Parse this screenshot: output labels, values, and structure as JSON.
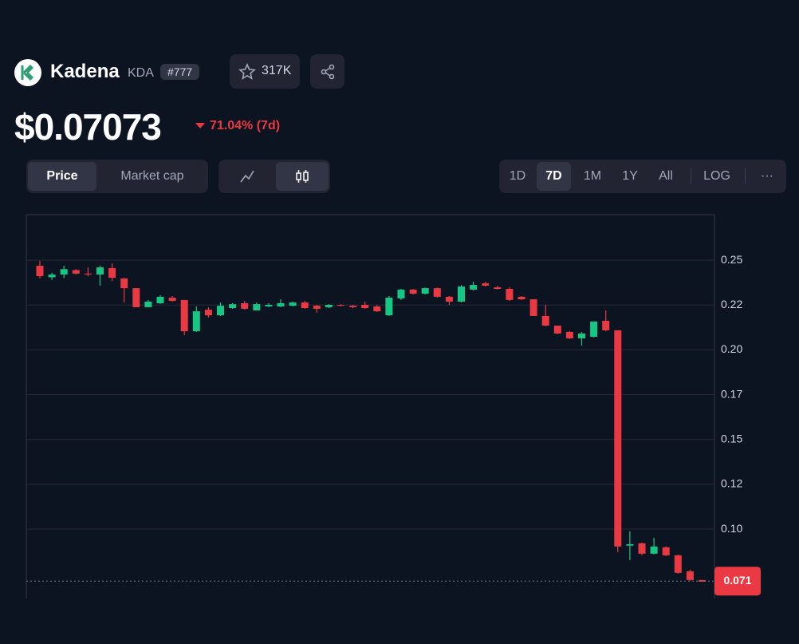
{
  "header": {
    "name": "Kadena",
    "symbol": "KDA",
    "rank": "#777",
    "watchlist": "317K"
  },
  "price": {
    "value": "$0.07073",
    "change": "71.04% (7d)"
  },
  "tabs": {
    "metric": [
      "Price",
      "Market cap"
    ],
    "range": [
      "1D",
      "7D",
      "1M",
      "1Y",
      "All",
      "LOG",
      "···"
    ]
  },
  "chart_data": {
    "type": "candlestick",
    "up_color": "#16c784",
    "down_color": "#ea3943",
    "ylim": [
      0.0613,
      0.2754
    ],
    "yticks": [
      0.25,
      {
        "value": 0.225,
        "label": "0.22"
      },
      {
        "value": 0.2,
        "label": "0.20"
      },
      {
        "value": 0.175,
        "label": "0.17"
      },
      0.15,
      {
        "value": 0.125,
        "label": "0.12"
      },
      {
        "value": 0.1,
        "label": "0.10"
      }
    ],
    "grid": true,
    "last_price": 0.071,
    "open": [
      0.2469,
      0.2405,
      0.242,
      0.2445,
      0.2425,
      0.242,
      0.2456,
      0.2398,
      0.2344,
      0.2238,
      0.226,
      0.2291,
      0.2278,
      0.2104,
      0.2224,
      0.2193,
      0.2233,
      0.226,
      0.222,
      0.2242,
      0.2242,
      0.2246,
      0.2264,
      0.2246,
      0.2238,
      0.2251,
      0.2246,
      0.2251,
      0.2242,
      0.2193,
      0.2287,
      0.2336,
      0.2313,
      0.2344,
      0.2296,
      0.2269,
      0.2336,
      0.2371,
      0.2349,
      0.234,
      0.2296,
      0.2282,
      0.2189,
      0.2135,
      0.21,
      0.2064,
      0.2073,
      0.2162,
      0.2109,
      0.0908,
      0.0921,
      0.0863,
      0.0899,
      0.0854,
      0.0765,
      0.0716
    ],
    "high": [
      0.2496,
      0.243,
      0.2469,
      0.245,
      0.246,
      0.2469,
      0.2482,
      0.2402,
      0.2344,
      0.2278,
      0.2305,
      0.23,
      0.2278,
      0.2242,
      0.2238,
      0.2264,
      0.226,
      0.2273,
      0.2264,
      0.226,
      0.2282,
      0.2269,
      0.2273,
      0.2251,
      0.2255,
      0.2255,
      0.2251,
      0.2269,
      0.2251,
      0.23,
      0.234,
      0.234,
      0.2348,
      0.2348,
      0.23,
      0.2362,
      0.238,
      0.238,
      0.2358,
      0.2349,
      0.23,
      0.2282,
      0.2251,
      0.2135,
      0.2104,
      0.21,
      0.2158,
      0.222,
      0.2109,
      0.0988,
      0.0925,
      0.0952,
      0.0903,
      0.0859,
      0.0774,
      0.0716
    ],
    "low": [
      0.2398,
      0.239,
      0.24,
      0.242,
      0.241,
      0.2358,
      0.2384,
      0.2264,
      0.2238,
      0.2238,
      0.2256,
      0.2269,
      0.2082,
      0.21,
      0.218,
      0.2189,
      0.2229,
      0.2224,
      0.222,
      0.2238,
      0.2238,
      0.2242,
      0.2229,
      0.2207,
      0.2233,
      0.2242,
      0.2233,
      0.2229,
      0.2211,
      0.2189,
      0.2278,
      0.2309,
      0.2309,
      0.2291,
      0.2251,
      0.2264,
      0.2331,
      0.2353,
      0.2336,
      0.2273,
      0.2278,
      0.2189,
      0.2131,
      0.2087,
      0.206,
      0.2024,
      0.2069,
      0.2104,
      0.0872,
      0.0827,
      0.0854,
      0.0859,
      0.085,
      0.0751,
      0.0712,
      0.0707
    ],
    "close": [
      0.2411,
      0.242,
      0.245,
      0.2425,
      0.242,
      0.246,
      0.2402,
      0.2344,
      0.2238,
      0.2269,
      0.2296,
      0.2273,
      0.2104,
      0.2215,
      0.2193,
      0.2246,
      0.2255,
      0.2229,
      0.2255,
      0.2251,
      0.226,
      0.2264,
      0.2233,
      0.2229,
      0.2251,
      0.2246,
      0.2238,
      0.2233,
      0.2215,
      0.2291,
      0.2336,
      0.2313,
      0.2344,
      0.2296,
      0.2269,
      0.2353,
      0.2362,
      0.2358,
      0.234,
      0.2278,
      0.2282,
      0.2189,
      0.2135,
      0.2091,
      0.2064,
      0.2091,
      0.2158,
      0.2109,
      0.0903,
      0.0916,
      0.0863,
      0.0903,
      0.0854,
      0.0756,
      0.0716,
      0.0707
    ]
  }
}
